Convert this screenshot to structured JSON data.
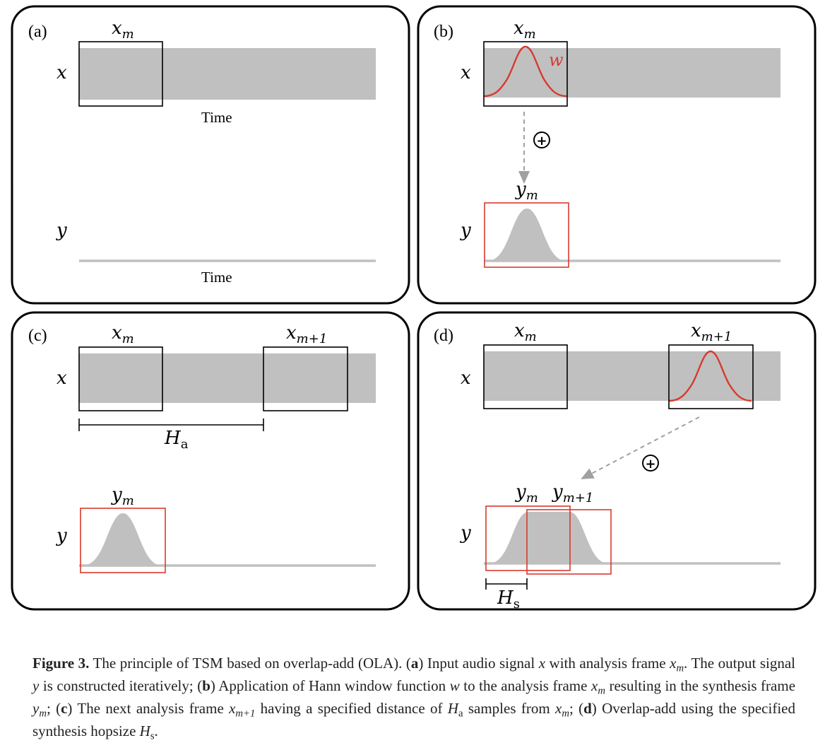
{
  "panels": {
    "a": {
      "label": "(a)",
      "xm": "x",
      "xm_sub": "m",
      "row_x": "x",
      "row_y": "y",
      "time_top": "Time",
      "time_bottom": "Time"
    },
    "b": {
      "label": "(b)",
      "xm": "x",
      "xm_sub": "m",
      "w": "w",
      "row_x": "x",
      "row_y": "y",
      "ym": "y",
      "ym_sub": "m",
      "plus": "+"
    },
    "c": {
      "label": "(c)",
      "xm": "x",
      "xm_sub": "m",
      "xm1": "x",
      "xm1_sub": "m+1",
      "row_x": "x",
      "row_y": "y",
      "Ha": "H",
      "Ha_sub": "a",
      "ym": "y",
      "ym_sub": "m"
    },
    "d": {
      "label": "(d)",
      "xm": "x",
      "xm_sub": "m",
      "xm1": "x",
      "xm1_sub": "m+1",
      "row_x": "x",
      "row_y": "y",
      "ym": "y",
      "ym_sub": "m",
      "ym1": "y",
      "ym1_sub": "m+1",
      "Hs": "H",
      "Hs_sub": "s",
      "plus": "+"
    }
  },
  "colors": {
    "signal": "#c0c0c0",
    "window": "#d83a2e",
    "frame": "#000000",
    "arrow": "#a0a0a0"
  },
  "caption": {
    "fig": "Figure 3.",
    "t1": " The principle of TSM based on overlap-add (OLA). (",
    "a": "a",
    "t2": ") Input audio signal ",
    "x1": "x",
    "t3": " with analysis frame ",
    "x2": "x",
    "x2s": "m",
    "t4": ". The output signal ",
    "y1": "y",
    "t5": " is constructed iteratively; (",
    "b": "b",
    "t6": ") Application of Hann window function ",
    "w": "w",
    "t7": " to the analysis frame ",
    "x3": "x",
    "x3s": "m",
    "t8": " resulting in the synthesis frame ",
    "y2": "y",
    "y2s": "m",
    "t9": "; (",
    "c": "c",
    "t10": ") The next analysis frame ",
    "x4": "x",
    "x4s": "m+1",
    "t11": " having a specified distance of ",
    "H1": "H",
    "H1s": "a",
    "t12": " samples from ",
    "x5": "x",
    "x5s": "m",
    "t13": "; (",
    "d": "d",
    "t14": ") Overlap-add using the specified synthesis hopsize ",
    "H2": "H",
    "H2s": "s",
    "t15": "."
  }
}
